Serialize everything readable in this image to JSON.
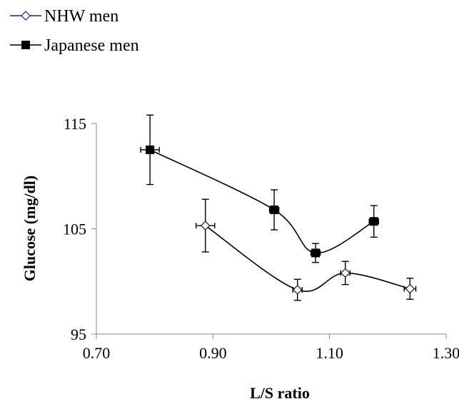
{
  "chart_data": {
    "type": "scatter",
    "title": "",
    "xlabel": "L/S ratio",
    "ylabel": "Glucose (mg/dl)",
    "xlim": [
      0.7,
      1.3
    ],
    "ylim": [
      95,
      115
    ],
    "x_ticks": [
      "0.70",
      "0.90",
      "1.10",
      "1.30"
    ],
    "y_ticks": [
      "95",
      "105",
      "115"
    ],
    "grid": false,
    "legend_position": "top-left",
    "series": [
      {
        "name": "NHW men",
        "marker": "open-diamond",
        "color": "#1a1a8c",
        "line_color": "#000000",
        "points": [
          {
            "x": 0.887,
            "y": 105.3,
            "x_err": 0.016,
            "y_err": 2.5
          },
          {
            "x": 1.045,
            "y": 99.2,
            "x_err": 0.008,
            "y_err": 1.0
          },
          {
            "x": 1.127,
            "y": 100.8,
            "x_err": 0.008,
            "y_err": 1.1
          },
          {
            "x": 1.238,
            "y": 99.3,
            "x_err": 0.01,
            "y_err": 1.0
          }
        ]
      },
      {
        "name": "Japanese men",
        "marker": "filled-square",
        "color": "#000000",
        "line_color": "#000000",
        "points": [
          {
            "x": 0.792,
            "y": 112.5,
            "x_err": 0.016,
            "y_err": 3.3
          },
          {
            "x": 1.005,
            "y": 106.8,
            "x_err": 0.008,
            "y_err": 1.9
          },
          {
            "x": 1.076,
            "y": 102.7,
            "x_err": 0.008,
            "y_err": 0.9
          },
          {
            "x": 1.176,
            "y": 105.7,
            "x_err": 0.008,
            "y_err": 1.5
          }
        ]
      }
    ]
  }
}
